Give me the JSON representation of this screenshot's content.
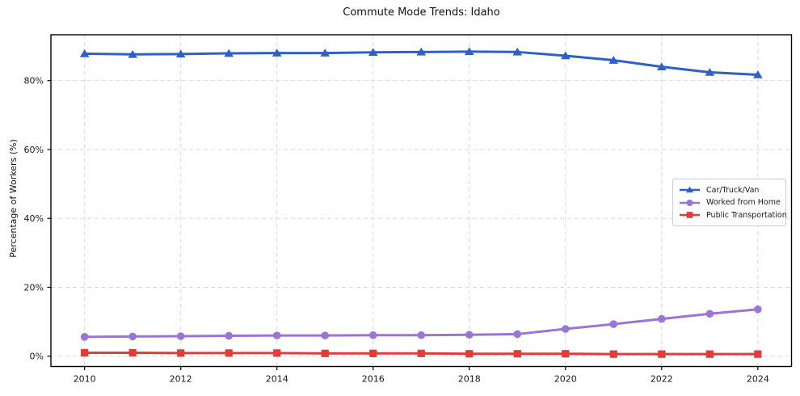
{
  "chart_data": {
    "type": "line",
    "title": "Commute Mode Trends: Idaho",
    "ylabel": "Percentage of Workers (%)",
    "xlabel": "",
    "x": [
      2010,
      2011,
      2012,
      2013,
      2014,
      2015,
      2016,
      2017,
      2018,
      2019,
      2020,
      2021,
      2022,
      2023,
      2024
    ],
    "series": [
      {
        "name": "Car/Truck/Van",
        "color": "#2d61c8",
        "marker": "triangle",
        "values": [
          87.8,
          87.6,
          87.7,
          87.9,
          88.0,
          88.0,
          88.2,
          88.3,
          88.4,
          88.3,
          87.2,
          85.9,
          84.0,
          82.4,
          81.7
        ]
      },
      {
        "name": "Worked from Home",
        "color": "#9a75d6",
        "marker": "circle",
        "values": [
          5.6,
          5.7,
          5.8,
          5.9,
          6.0,
          6.0,
          6.1,
          6.1,
          6.2,
          6.4,
          7.9,
          9.3,
          10.8,
          12.3,
          13.6
        ]
      },
      {
        "name": "Public Transportation",
        "color": "#e23b3b",
        "marker": "square",
        "values": [
          1.0,
          1.0,
          0.9,
          0.9,
          0.9,
          0.8,
          0.8,
          0.8,
          0.7,
          0.7,
          0.7,
          0.6,
          0.6,
          0.6,
          0.6
        ]
      }
    ],
    "xlim": [
      2009.3,
      2024.7
    ],
    "ylim": [
      -3.0,
      93.3
    ],
    "xticks": {
      "values": [
        2010,
        2012,
        2014,
        2016,
        2018,
        2020,
        2022,
        2024
      ],
      "labels": [
        "2010",
        "2012",
        "2014",
        "2016",
        "2018",
        "2020",
        "2022",
        "2024"
      ]
    },
    "yticks": {
      "values": [
        0,
        20,
        40,
        60,
        80
      ],
      "labels": [
        "0%",
        "20%",
        "40%",
        "60%",
        "80%"
      ]
    },
    "grid": {
      "shown": true,
      "style": "dashed",
      "color": "#d9d9d9"
    },
    "legend": {
      "position": "right-center"
    },
    "colors": {
      "spine": "#000000",
      "tick_text": "#1a1a1a",
      "title_text": "#111111",
      "background": "#ffffff"
    }
  }
}
